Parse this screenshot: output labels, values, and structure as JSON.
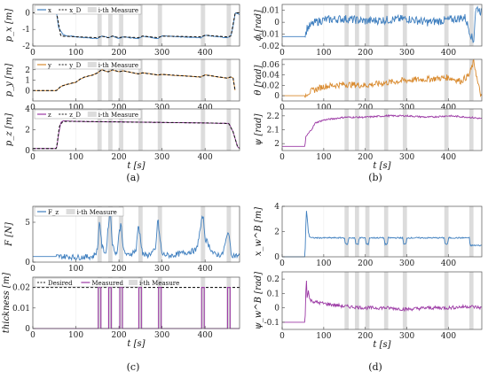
{
  "captions": {
    "a": "(a)",
    "b": "(b)",
    "c": "(c)",
    "d": "(d)"
  },
  "shade_intervals": [
    [
      150,
      160
    ],
    [
      175,
      185
    ],
    [
      200,
      210
    ],
    [
      245,
      255
    ],
    [
      290,
      300
    ],
    [
      390,
      400
    ],
    [
      450,
      460
    ]
  ],
  "colors": {
    "blue": "#3f7fbf",
    "orange": "#d98a2e",
    "purple": "#9c3aa5",
    "shade": "#dcdcdc",
    "dash": "#1a1a1a"
  },
  "chart_data": [
    {
      "id": "px",
      "type": "line",
      "ylabel": "p_x [m]",
      "xlabel": "",
      "xlim": [
        0,
        480
      ],
      "ylim": [
        -2,
        0.5
      ],
      "xticks": [
        "0",
        "100",
        "200",
        "300",
        "400"
      ],
      "yticks": [
        "0",
        "-1",
        "-2"
      ],
      "legend": [
        "x",
        "x_D",
        "i-th Measure"
      ],
      "series": [
        {
          "name": "x",
          "x": [
            0,
            55,
            60,
            70,
            80,
            90,
            100,
            150,
            160,
            175,
            185,
            200,
            210,
            245,
            255,
            290,
            300,
            390,
            400,
            450,
            460,
            465,
            470,
            480
          ],
          "values": [
            0,
            0,
            -0.9,
            -1.3,
            -1.4,
            -1.4,
            -1.45,
            -1.55,
            -1.4,
            -1.5,
            -1.4,
            -1.55,
            -1.45,
            -1.55,
            -1.4,
            -1.55,
            -1.4,
            -1.5,
            -1.35,
            -1.5,
            -1.4,
            -0.8,
            0,
            -0.1
          ]
        },
        {
          "name": "x_D",
          "x": [
            0,
            55,
            65,
            150,
            160,
            175,
            185,
            200,
            210,
            245,
            255,
            290,
            300,
            390,
            400,
            450,
            460,
            470,
            480
          ],
          "values": [
            0,
            0,
            -1.4,
            -1.5,
            -1.4,
            -1.5,
            -1.4,
            -1.5,
            -1.45,
            -1.5,
            -1.4,
            -1.5,
            -1.4,
            -1.45,
            -1.35,
            -1.45,
            -1.4,
            0,
            0
          ]
        }
      ]
    },
    {
      "id": "py",
      "type": "line",
      "ylabel": "p_y [m]",
      "xlabel": "",
      "xlim": [
        0,
        480
      ],
      "ylim": [
        -1,
        3
      ],
      "xticks": [
        "0",
        "100",
        "200",
        "300",
        "400"
      ],
      "yticks": [
        "0",
        "1",
        "2"
      ],
      "legend": [
        "y",
        "y_D",
        "i-th Measure"
      ],
      "series": [
        {
          "name": "y",
          "x": [
            0,
            55,
            65,
            80,
            100,
            110,
            120,
            140,
            150,
            160,
            175,
            185,
            200,
            210,
            245,
            255,
            290,
            300,
            390,
            400,
            450,
            460,
            465,
            470
          ],
          "values": [
            0,
            0,
            0.4,
            0.6,
            0.8,
            1.1,
            1.3,
            1.5,
            1.7,
            2.0,
            1.8,
            2.0,
            1.8,
            1.9,
            1.6,
            1.7,
            1.5,
            1.55,
            1.3,
            1.5,
            1.2,
            1.3,
            1.2,
            -0.1
          ]
        },
        {
          "name": "y_D",
          "x": [
            0,
            55,
            65,
            80,
            100,
            110,
            120,
            140,
            150,
            160,
            175,
            185,
            200,
            210,
            245,
            255,
            290,
            300,
            390,
            400,
            450,
            460,
            465,
            470
          ],
          "values": [
            0,
            0,
            0.4,
            0.6,
            0.8,
            1.1,
            1.3,
            1.5,
            1.7,
            2.0,
            1.8,
            2.0,
            1.8,
            1.9,
            1.6,
            1.7,
            1.5,
            1.55,
            1.3,
            1.5,
            1.2,
            1.3,
            1.2,
            -0.1
          ]
        }
      ]
    },
    {
      "id": "pz",
      "type": "line",
      "ylabel": "p_z [m]",
      "xlabel": "t [s]",
      "xlim": [
        0,
        480
      ],
      "ylim": [
        0,
        4
      ],
      "xticks": [
        "0",
        "100",
        "200",
        "300",
        "400"
      ],
      "yticks": [
        "0",
        "2",
        "4"
      ],
      "legend": [
        "z",
        "z_D",
        "i-th Measure"
      ],
      "series": [
        {
          "name": "z",
          "x": [
            0,
            55,
            60,
            65,
            70,
            100,
            200,
            300,
            400,
            455,
            465,
            475,
            480
          ],
          "values": [
            0.2,
            0.2,
            1.6,
            2.7,
            2.85,
            2.8,
            2.75,
            2.7,
            2.65,
            2.6,
            1.8,
            0.4,
            0.2
          ]
        },
        {
          "name": "z_D",
          "x": [
            0,
            55,
            62,
            70,
            100,
            200,
            300,
            400,
            455,
            465,
            475,
            480
          ],
          "values": [
            0.2,
            0.2,
            2.4,
            2.8,
            2.8,
            2.75,
            2.7,
            2.65,
            2.6,
            1.8,
            0.4,
            0.2
          ]
        }
      ]
    },
    {
      "id": "phi",
      "type": "line",
      "ylabel": "ϕ [rad]",
      "xlabel": "",
      "xlim": [
        0,
        480
      ],
      "ylim": [
        -0.02,
        0.015
      ],
      "xticks": [
        "0",
        "100",
        "200",
        "300",
        "400"
      ],
      "yticks": [
        "0.01",
        "0",
        "-0.01",
        "-0.02"
      ],
      "series": [
        {
          "name": "",
          "x": [
            0,
            55,
            60,
            80,
            100,
            150,
            200,
            250,
            300,
            350,
            400,
            440,
            460,
            465,
            470,
            480
          ],
          "values": [
            -0.012,
            -0.012,
            -0.005,
            0.0,
            0.002,
            0.003,
            0.001,
            0.002,
            0.003,
            0.0,
            0.002,
            0.004,
            -0.017,
            0.01,
            0.012,
            0.008
          ]
        }
      ]
    },
    {
      "id": "theta",
      "type": "line",
      "ylabel": "θ [rad]",
      "xlabel": "",
      "xlim": [
        0,
        480
      ],
      "ylim": [
        -0.01,
        0.07
      ],
      "xticks": [
        "0",
        "100",
        "200",
        "300",
        "400"
      ],
      "yticks": [
        "0.06",
        "0.04",
        "0.02",
        "0"
      ],
      "series": [
        {
          "name": "",
          "x": [
            0,
            55,
            60,
            80,
            100,
            150,
            200,
            250,
            300,
            350,
            400,
            430,
            450,
            460,
            465,
            470,
            480
          ],
          "values": [
            0,
            0,
            0.005,
            0.012,
            0.018,
            0.022,
            0.02,
            0.025,
            0.03,
            0.032,
            0.035,
            0.028,
            0.04,
            0.065,
            0.05,
            0.025,
            -0.005
          ]
        }
      ]
    },
    {
      "id": "psi",
      "type": "line",
      "ylabel": "ψ [rad]",
      "xlabel": "t [s]",
      "xlim": [
        0,
        480
      ],
      "ylim": [
        1.95,
        2.25
      ],
      "xticks": [
        "0",
        "100",
        "200",
        "300",
        "400"
      ],
      "yticks": [
        "2.2",
        "2.1",
        "2",
        "1.9"
      ],
      "series": [
        {
          "name": "",
          "x": [
            0,
            55,
            57,
            60,
            70,
            80,
            100,
            150,
            200,
            250,
            300,
            350,
            400,
            450,
            480
          ],
          "values": [
            1.98,
            1.98,
            2.05,
            2.06,
            2.1,
            2.15,
            2.17,
            2.19,
            2.19,
            2.2,
            2.2,
            2.19,
            2.2,
            2.19,
            2.18
          ]
        }
      ]
    },
    {
      "id": "force",
      "type": "line",
      "ylabel": "F [N]",
      "xlabel": "",
      "xlim": [
        0,
        480
      ],
      "ylim": [
        0,
        7
      ],
      "xticks": [
        "0",
        "100",
        "200",
        "300",
        "400"
      ],
      "yticks": [
        "0",
        "5"
      ],
      "legend": [
        "F_z",
        "i-th Measure"
      ],
      "series": [
        {
          "name": "F_z",
          "x": [
            0,
            60,
            80,
            100,
            140,
            150,
            155,
            160,
            170,
            175,
            180,
            185,
            195,
            200,
            205,
            210,
            220,
            240,
            245,
            250,
            255,
            265,
            285,
            290,
            295,
            300,
            320,
            380,
            390,
            395,
            400,
            420,
            440,
            450,
            455,
            460,
            470,
            480
          ],
          "values": [
            0.7,
            0.7,
            0.7,
            0.6,
            0.7,
            1.5,
            5.5,
            2.0,
            1.0,
            4.5,
            6.5,
            2.0,
            1.0,
            3.5,
            5.0,
            1.5,
            0.8,
            1.5,
            4.8,
            3.0,
            1.0,
            0.8,
            1.5,
            5.5,
            3.0,
            1.0,
            0.8,
            1.5,
            4.5,
            6.0,
            3.0,
            1.0,
            0.9,
            3.0,
            4.0,
            1.0,
            0.8,
            0.8
          ]
        }
      ]
    },
    {
      "id": "thickness",
      "type": "line",
      "ylabel": "thickness [m]",
      "xlabel": "t [s]",
      "xlim": [
        0,
        480
      ],
      "ylim": [
        0,
        0.025
      ],
      "xticks": [
        "0",
        "100",
        "200",
        "300",
        "400"
      ],
      "yticks": [
        "0.02",
        "0.01",
        "0"
      ],
      "legend": [
        "Desired",
        "Measured",
        "i-th Measure"
      ],
      "desired": 0.02,
      "measured_pulses": [
        [
          152,
          158
        ],
        [
          176,
          182
        ],
        [
          202,
          208
        ],
        [
          246,
          252
        ],
        [
          292,
          298
        ],
        [
          392,
          398
        ],
        [
          452,
          458
        ]
      ]
    },
    {
      "id": "xw",
      "type": "line",
      "ylabel": "x_w^B [m]",
      "xlabel": "",
      "xlim": [
        0,
        480
      ],
      "ylim": [
        0,
        4
      ],
      "xticks": [
        "0",
        "100",
        "200",
        "300",
        "400"
      ],
      "yticks": [
        "4",
        "2",
        "0"
      ],
      "series": [
        {
          "name": "",
          "x": [
            0,
            55,
            58,
            60,
            63,
            66,
            70,
            150,
            152,
            158,
            160,
            175,
            177,
            183,
            185,
            200,
            202,
            208,
            210,
            245,
            247,
            253,
            255,
            290,
            292,
            298,
            300,
            390,
            392,
            398,
            400,
            450,
            452,
            458,
            460,
            480
          ],
          "values": [
            0,
            0,
            3.8,
            3.2,
            2.0,
            1.6,
            1.5,
            1.5,
            1.0,
            1.0,
            1.5,
            1.5,
            1.0,
            1.0,
            1.5,
            1.5,
            1.0,
            1.0,
            1.5,
            1.5,
            1.0,
            1.0,
            1.5,
            1.5,
            1.0,
            1.0,
            1.5,
            1.5,
            1.0,
            1.0,
            1.5,
            1.5,
            0.9,
            0.9,
            0.9,
            0.9
          ]
        }
      ]
    },
    {
      "id": "psiw",
      "type": "line",
      "ylabel": "ψ_w^B [rad]",
      "xlabel": "t [s]",
      "xlim": [
        0,
        480
      ],
      "ylim": [
        -0.15,
        0.25
      ],
      "xticks": [
        "0",
        "100",
        "200",
        "300",
        "400"
      ],
      "yticks": [
        "0.2",
        "0.1",
        "0",
        "-0.1"
      ],
      "series": [
        {
          "name": "",
          "x": [
            0,
            55,
            58,
            60,
            63,
            66,
            70,
            80,
            100,
            150,
            200,
            250,
            300,
            350,
            400,
            450,
            480
          ],
          "values": [
            -0.1,
            -0.1,
            0.22,
            0.08,
            0.12,
            0.06,
            0.05,
            0.04,
            0.03,
            0.01,
            0.0,
            0.0,
            -0.01,
            0.0,
            0.0,
            0.01,
            0.0
          ]
        }
      ]
    }
  ]
}
